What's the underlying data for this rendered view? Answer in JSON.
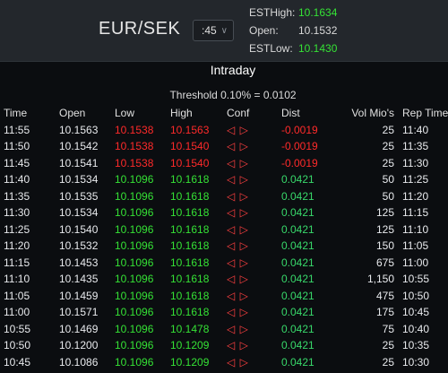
{
  "header": {
    "pair": "EUR/SEK",
    "interval": ":45",
    "est_high_label": "ESTHigh:",
    "est_high_value": "10.1634",
    "open_label": "Open:",
    "open_value": "10.1532",
    "est_low_label": "ESTLow:",
    "est_low_value": "10.1430"
  },
  "title": "Intraday",
  "threshold": "Threshold 0.10% = 0.0102",
  "columns": [
    "Time",
    "Open",
    "Low",
    "High",
    "Conf",
    "Dist",
    "Vol Mio's",
    "Rep Time"
  ],
  "conf_symbol": "◁ ▷",
  "colors": {
    "green": "#35e235",
    "red": "#ff2a2a",
    "background": "#0b0d10",
    "header": "#23272c"
  },
  "rows": [
    {
      "time": "11:55",
      "open": "10.1563",
      "low": "10.1538",
      "high": "10.1563",
      "dist": "-0.0019",
      "vol": "25",
      "rep": "11:40",
      "state": "red"
    },
    {
      "time": "11:50",
      "open": "10.1542",
      "low": "10.1538",
      "high": "10.1540",
      "dist": "-0.0019",
      "vol": "25",
      "rep": "11:35",
      "state": "red"
    },
    {
      "time": "11:45",
      "open": "10.1541",
      "low": "10.1538",
      "high": "10.1540",
      "dist": "-0.0019",
      "vol": "25",
      "rep": "11:30",
      "state": "red"
    },
    {
      "time": "11:40",
      "open": "10.1534",
      "low": "10.1096",
      "high": "10.1618",
      "dist": "0.0421",
      "vol": "50",
      "rep": "11:25",
      "state": "green"
    },
    {
      "time": "11:35",
      "open": "10.1535",
      "low": "10.1096",
      "high": "10.1618",
      "dist": "0.0421",
      "vol": "50",
      "rep": "11:20",
      "state": "green"
    },
    {
      "time": "11:30",
      "open": "10.1534",
      "low": "10.1096",
      "high": "10.1618",
      "dist": "0.0421",
      "vol": "125",
      "rep": "11:15",
      "state": "green"
    },
    {
      "time": "11:25",
      "open": "10.1540",
      "low": "10.1096",
      "high": "10.1618",
      "dist": "0.0421",
      "vol": "125",
      "rep": "11:10",
      "state": "green"
    },
    {
      "time": "11:20",
      "open": "10.1532",
      "low": "10.1096",
      "high": "10.1618",
      "dist": "0.0421",
      "vol": "150",
      "rep": "11:05",
      "state": "green"
    },
    {
      "time": "11:15",
      "open": "10.1453",
      "low": "10.1096",
      "high": "10.1618",
      "dist": "0.0421",
      "vol": "675",
      "rep": "11:00",
      "state": "green"
    },
    {
      "time": "11:10",
      "open": "10.1435",
      "low": "10.1096",
      "high": "10.1618",
      "dist": "0.0421",
      "vol": "1,150",
      "rep": "10:55",
      "state": "green"
    },
    {
      "time": "11:05",
      "open": "10.1459",
      "low": "10.1096",
      "high": "10.1618",
      "dist": "0.0421",
      "vol": "475",
      "rep": "10:50",
      "state": "green"
    },
    {
      "time": "11:00",
      "open": "10.1571",
      "low": "10.1096",
      "high": "10.1618",
      "dist": "0.0421",
      "vol": "175",
      "rep": "10:45",
      "state": "green"
    },
    {
      "time": "10:55",
      "open": "10.1469",
      "low": "10.1096",
      "high": "10.1478",
      "dist": "0.0421",
      "vol": "75",
      "rep": "10:40",
      "state": "green"
    },
    {
      "time": "10:50",
      "open": "10.1200",
      "low": "10.1096",
      "high": "10.1209",
      "dist": "0.0421",
      "vol": "25",
      "rep": "10:35",
      "state": "green"
    },
    {
      "time": "10:45",
      "open": "10.1086",
      "low": "10.1096",
      "high": "10.1209",
      "dist": "0.0421",
      "vol": "25",
      "rep": "10:30",
      "state": "green"
    }
  ]
}
